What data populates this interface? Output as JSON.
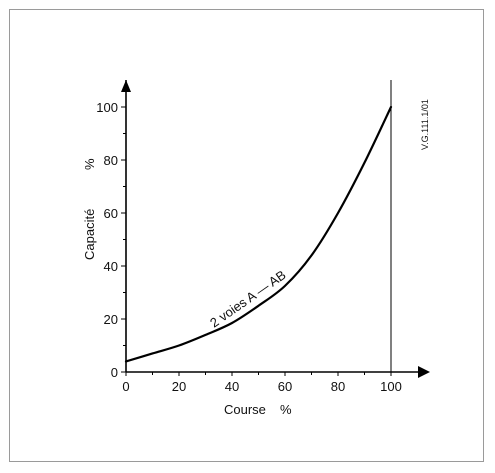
{
  "chart_data": {
    "type": "line",
    "xlabel": "Course",
    "xunit": "%",
    "ylabel": "Capacité",
    "yunit": "%",
    "xlim": [
      0,
      100
    ],
    "ylim": [
      0,
      100
    ],
    "xticks": [
      "0",
      "20",
      "40",
      "60",
      "80",
      "100"
    ],
    "yticks": [
      "0",
      "20",
      "40",
      "60",
      "80",
      "100"
    ],
    "reference_code": "V.G.111.1/01",
    "grid": false,
    "series": [
      {
        "name": "2 voies A — AB",
        "x": [
          0,
          10,
          20,
          30,
          40,
          50,
          60,
          70,
          80,
          90,
          100
        ],
        "y": [
          4,
          7,
          10,
          14,
          18.5,
          25,
          32.5,
          44,
          60,
          79,
          100
        ]
      }
    ]
  }
}
